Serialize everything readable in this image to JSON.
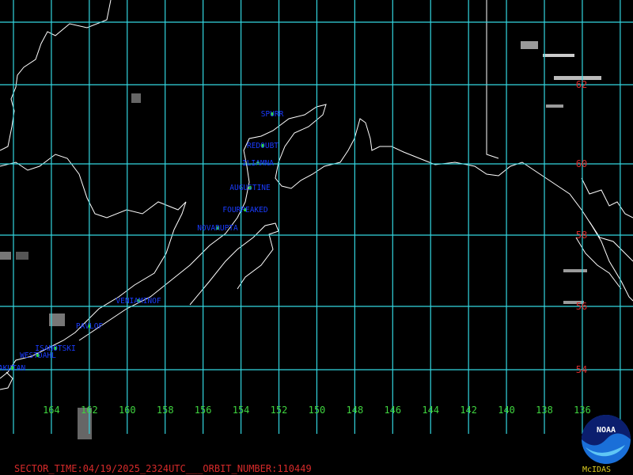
{
  "map": {
    "longitude_labels": [
      "164",
      "162",
      "160",
      "158",
      "156",
      "154",
      "152",
      "150",
      "148",
      "146",
      "144",
      "142",
      "140",
      "138",
      "136"
    ],
    "latitude_labels": [
      "62",
      "60",
      "58",
      "56",
      "54"
    ],
    "volcanoes": [
      "SPURR",
      "REDOUBT",
      "ILIAMNA",
      "AUGUSTINE",
      "FOURPEAKED",
      "NOVARUPTA",
      "VENIAMINOF",
      "PAVLOF",
      "ISANOTSKI",
      "WESTDAHL",
      "AKUTAN"
    ],
    "footer": "SECTOR_TIME:04/19/2025_2324UTC___ORBIT_NUMBER:110449",
    "logo": {
      "badge": "NOAA",
      "caption": "McIDAS"
    }
  }
}
